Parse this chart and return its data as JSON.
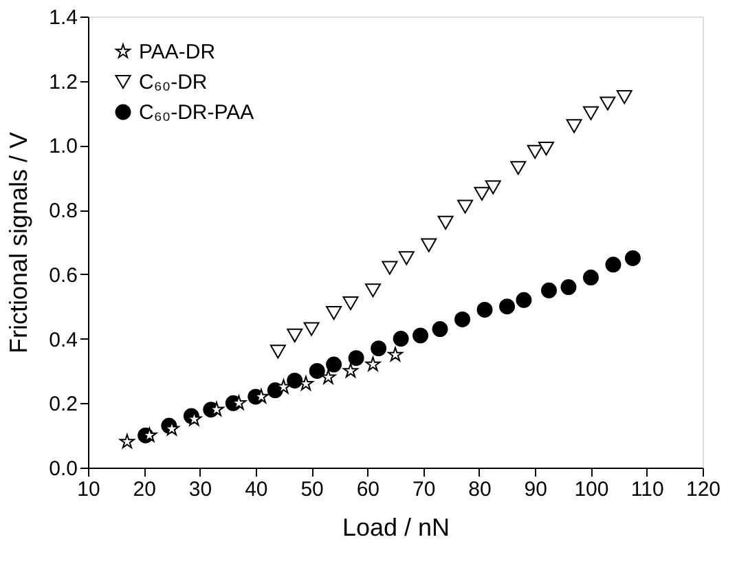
{
  "chart_data": {
    "type": "scatter",
    "xlabel": "Load / nN",
    "ylabel": "Frictional signals / V",
    "xlim": [
      10,
      120
    ],
    "xticks": [
      10,
      20,
      30,
      40,
      50,
      60,
      70,
      80,
      90,
      100,
      110,
      120
    ],
    "ylim": [
      0,
      1.4
    ],
    "yticks": [
      {
        "value": 0,
        "label": "0.0"
      },
      {
        "value": 0.2,
        "label": "0.2"
      },
      {
        "value": 0.4,
        "label": "0.4"
      },
      {
        "value": 0.6,
        "label": "0.6"
      },
      {
        "value": 0.8,
        "label": "0.8"
      },
      {
        "value": 1,
        "label": "1.0"
      },
      {
        "value": 1.2,
        "label": "1.2"
      },
      {
        "value": 1.4,
        "label": "1.4"
      }
    ],
    "grid": false,
    "legend": "top left",
    "series": [
      {
        "name": "PAA-DR",
        "color": "#000000",
        "marker": "star",
        "x": [
          17,
          21,
          25,
          29,
          33,
          37,
          41,
          45,
          49,
          53,
          57,
          61,
          65
        ],
        "values": [
          0.08,
          0.1,
          0.12,
          0.15,
          0.18,
          0.2,
          0.22,
          0.25,
          0.26,
          0.28,
          0.3,
          0.32,
          0.35
        ]
      },
      {
        "name": "C₆₀-DR",
        "color": "#000000",
        "marker": "triangle",
        "x": [
          44,
          47,
          50,
          54,
          57,
          61,
          64,
          67,
          71,
          74,
          77.5,
          80.5,
          82.5,
          87,
          90,
          92,
          97,
          100,
          103,
          106
        ],
        "values": [
          0.36,
          0.41,
          0.43,
          0.48,
          0.51,
          0.55,
          0.62,
          0.65,
          0.69,
          0.76,
          0.81,
          0.85,
          0.87,
          0.93,
          0.98,
          0.99,
          1.06,
          1.1,
          1.13,
          1.15
        ]
      },
      {
        "name": "C₆₀-DR-PAA",
        "color": "#000000",
        "marker": "circle",
        "x": [
          20.3,
          24.5,
          28.5,
          32,
          36,
          40,
          43.5,
          47,
          51,
          54,
          58,
          62,
          66,
          69.5,
          73,
          77,
          81,
          85,
          88,
          92.5,
          96,
          100,
          104,
          107.5
        ],
        "values": [
          0.1,
          0.13,
          0.16,
          0.18,
          0.2,
          0.22,
          0.24,
          0.27,
          0.3,
          0.32,
          0.34,
          0.37,
          0.4,
          0.41,
          0.43,
          0.46,
          0.49,
          0.5,
          0.52,
          0.55,
          0.56,
          0.59,
          0.63,
          0.65
        ]
      }
    ]
  }
}
